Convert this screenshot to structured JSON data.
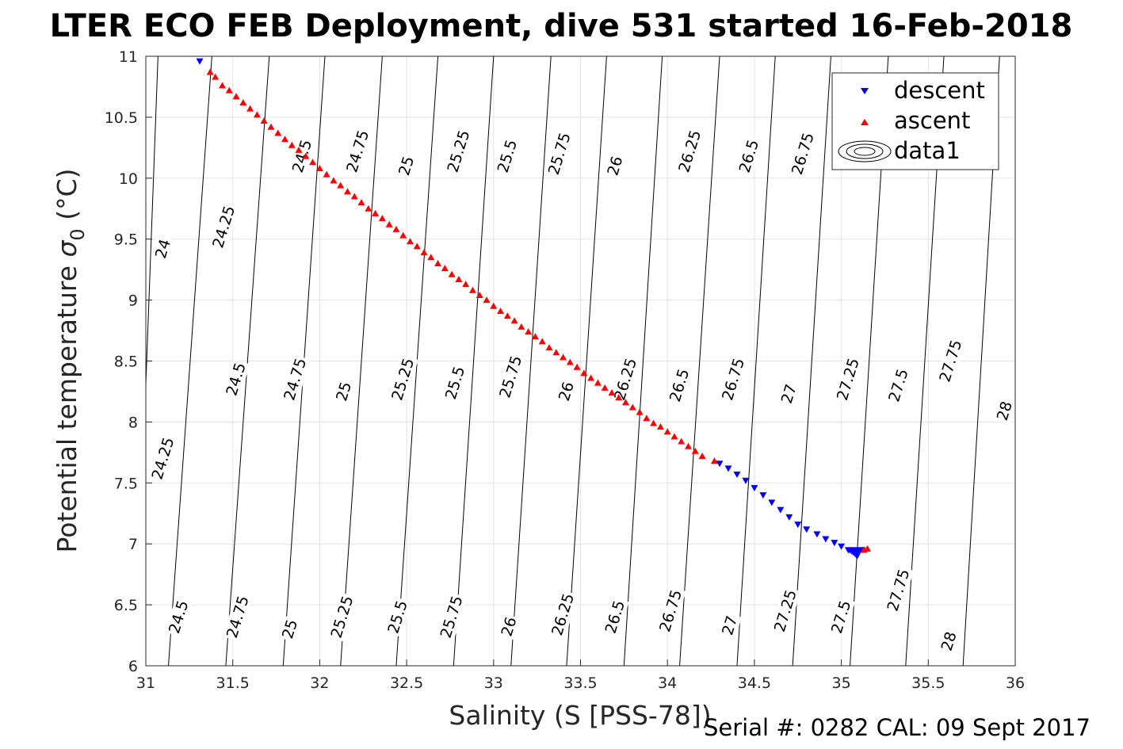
{
  "chart_data": {
    "type": "scatter",
    "title": "LTER ECO FEB Deployment, dive 531 started 16-Feb-2018",
    "xlabel": "Salinity (S [PSS-78])",
    "ylabel_main": "Potential temperature ",
    "ylabel_symbol": "σ",
    "ylabel_sub": "0",
    "ylabel_unit": " (°C)",
    "footer": "Serial #: 0282  CAL: 09 Sept 2017",
    "xlim": [
      31,
      36
    ],
    "ylim": [
      6,
      11
    ],
    "xticks": [
      "31",
      "31.5",
      "32",
      "32.5",
      "33",
      "33.5",
      "34",
      "34.5",
      "35",
      "35.5",
      "36"
    ],
    "yticks": [
      "6",
      "6.5",
      "7",
      "7.5",
      "8",
      "8.5",
      "9",
      "9.5",
      "10",
      "10.5",
      "11"
    ],
    "grid": true,
    "legend_position": "top-right",
    "legend": [
      "descent",
      "ascent",
      "data1"
    ],
    "series": [
      {
        "name": "descent",
        "color": "#0000ff",
        "marker": "triangle-down",
        "points": [
          [
            31.31,
            10.96
          ],
          [
            34.3,
            7.66
          ],
          [
            34.35,
            7.62
          ],
          [
            34.4,
            7.57
          ],
          [
            34.45,
            7.52
          ],
          [
            34.5,
            7.46
          ],
          [
            34.55,
            7.4
          ],
          [
            34.6,
            7.34
          ],
          [
            34.65,
            7.28
          ],
          [
            34.7,
            7.22
          ],
          [
            34.75,
            7.16
          ],
          [
            34.8,
            7.12
          ],
          [
            34.86,
            7.08
          ],
          [
            34.91,
            7.04
          ],
          [
            34.96,
            7.01
          ],
          [
            35.0,
            6.98
          ],
          [
            35.04,
            6.95
          ],
          [
            35.06,
            6.94
          ],
          [
            35.07,
            6.93
          ],
          [
            35.08,
            6.92
          ],
          [
            35.09,
            6.9
          ],
          [
            35.1,
            6.94
          ],
          [
            35.11,
            6.95
          ],
          [
            35.12,
            6.95
          ],
          [
            35.05,
            6.95
          ],
          [
            35.08,
            6.95
          ]
        ]
      },
      {
        "name": "ascent",
        "color": "#ff0000",
        "marker": "triangle-up",
        "points": [
          [
            31.37,
            10.87
          ],
          [
            31.4,
            10.83
          ],
          [
            31.44,
            10.76
          ],
          [
            31.48,
            10.72
          ],
          [
            31.52,
            10.67
          ],
          [
            31.56,
            10.62
          ],
          [
            31.6,
            10.57
          ],
          [
            31.64,
            10.52
          ],
          [
            31.68,
            10.47
          ],
          [
            31.72,
            10.42
          ],
          [
            31.76,
            10.37
          ],
          [
            31.8,
            10.32
          ],
          [
            31.84,
            10.27
          ],
          [
            31.88,
            10.23
          ],
          [
            31.92,
            10.18
          ],
          [
            31.96,
            10.13
          ],
          [
            32.0,
            10.08
          ],
          [
            32.04,
            10.03
          ],
          [
            32.08,
            9.98
          ],
          [
            32.12,
            9.94
          ],
          [
            32.16,
            9.89
          ],
          [
            32.2,
            9.85
          ],
          [
            32.24,
            9.8
          ],
          [
            32.28,
            9.75
          ],
          [
            32.32,
            9.71
          ],
          [
            32.36,
            9.67
          ],
          [
            32.4,
            9.62
          ],
          [
            32.44,
            9.58
          ],
          [
            32.48,
            9.53
          ],
          [
            32.52,
            9.48
          ],
          [
            32.56,
            9.44
          ],
          [
            32.6,
            9.39
          ],
          [
            32.64,
            9.35
          ],
          [
            32.68,
            9.3
          ],
          [
            32.72,
            9.26
          ],
          [
            32.76,
            9.21
          ],
          [
            32.8,
            9.17
          ],
          [
            32.84,
            9.13
          ],
          [
            32.88,
            9.08
          ],
          [
            32.92,
            9.04
          ],
          [
            32.96,
            9.0
          ],
          [
            33.0,
            8.95
          ],
          [
            33.04,
            8.91
          ],
          [
            33.08,
            8.87
          ],
          [
            33.12,
            8.83
          ],
          [
            33.16,
            8.78
          ],
          [
            33.2,
            8.74
          ],
          [
            33.24,
            8.7
          ],
          [
            33.28,
            8.66
          ],
          [
            33.32,
            8.61
          ],
          [
            33.36,
            8.57
          ],
          [
            33.4,
            8.53
          ],
          [
            33.44,
            8.49
          ],
          [
            33.48,
            8.45
          ],
          [
            33.52,
            8.4
          ],
          [
            33.56,
            8.36
          ],
          [
            33.6,
            8.32
          ],
          [
            33.64,
            8.28
          ],
          [
            33.68,
            8.24
          ],
          [
            33.72,
            8.2
          ],
          [
            33.76,
            8.16
          ],
          [
            33.8,
            8.12
          ],
          [
            33.84,
            8.08
          ],
          [
            33.88,
            8.03
          ],
          [
            33.92,
            7.99
          ],
          [
            33.96,
            7.96
          ],
          [
            34.0,
            7.92
          ],
          [
            34.04,
            7.88
          ],
          [
            34.08,
            7.84
          ],
          [
            34.12,
            7.8
          ],
          [
            34.16,
            7.76
          ],
          [
            34.2,
            7.72
          ],
          [
            34.27,
            7.68
          ],
          [
            35.15,
            6.96
          ],
          [
            35.13,
            6.95
          ]
        ]
      }
    ],
    "isopycnals": [
      {
        "value": "24",
        "p1": [
          31.07,
          11
        ],
        "p2": [
          30.94,
          6
        ]
      },
      {
        "value": "24.25",
        "p1": [
          31.38,
          11
        ],
        "p2": [
          31.13,
          6
        ]
      },
      {
        "value": "24.5",
        "p1": [
          31.71,
          11
        ],
        "p2": [
          31.46,
          6
        ]
      },
      {
        "value": "24.75",
        "p1": [
          32.03,
          11
        ],
        "p2": [
          31.79,
          6
        ]
      },
      {
        "value": "25",
        "p1": [
          32.36,
          11
        ],
        "p2": [
          32.12,
          6
        ]
      },
      {
        "value": "25.25",
        "p1": [
          32.68,
          11
        ],
        "p2": [
          32.44,
          6
        ]
      },
      {
        "value": "25.5",
        "p1": [
          33.0,
          11
        ],
        "p2": [
          32.77,
          6
        ]
      },
      {
        "value": "25.75",
        "p1": [
          33.33,
          11
        ],
        "p2": [
          33.1,
          6
        ]
      },
      {
        "value": "26",
        "p1": [
          33.65,
          11
        ],
        "p2": [
          33.42,
          6
        ]
      },
      {
        "value": "26.25",
        "p1": [
          33.97,
          11
        ],
        "p2": [
          33.75,
          6
        ]
      },
      {
        "value": "26.5",
        "p1": [
          34.3,
          11
        ],
        "p2": [
          34.07,
          6
        ]
      },
      {
        "value": "26.75",
        "p1": [
          34.62,
          11
        ],
        "p2": [
          34.4,
          6
        ]
      },
      {
        "value": "27",
        "p1": [
          34.94,
          11
        ],
        "p2": [
          34.72,
          6
        ]
      },
      {
        "value": "27.25",
        "p1": [
          35.27,
          11
        ],
        "p2": [
          35.05,
          6
        ]
      },
      {
        "value": "27.5",
        "p1": [
          35.59,
          11
        ],
        "p2": [
          35.37,
          6
        ]
      },
      {
        "value": "27.75",
        "p1": [
          35.91,
          11
        ],
        "p2": [
          35.7,
          6
        ]
      },
      {
        "value": "28",
        "p1": [
          36.23,
          11
        ],
        "p2": [
          36.02,
          6
        ]
      }
    ],
    "contour_labels": [
      {
        "text": "24",
        "x": 31.1,
        "y": 9.42
      },
      {
        "text": "24.25",
        "x": 31.45,
        "y": 9.6
      },
      {
        "text": "24.5",
        "x": 31.9,
        "y": 10.18
      },
      {
        "text": "24.75",
        "x": 32.22,
        "y": 10.22
      },
      {
        "text": "25",
        "x": 32.5,
        "y": 10.1
      },
      {
        "text": "25.25",
        "x": 32.8,
        "y": 10.22
      },
      {
        "text": "25.5",
        "x": 33.08,
        "y": 10.18
      },
      {
        "text": "25.75",
        "x": 33.38,
        "y": 10.2
      },
      {
        "text": "26",
        "x": 33.7,
        "y": 10.1
      },
      {
        "text": "26.25",
        "x": 34.13,
        "y": 10.22
      },
      {
        "text": "26.5",
        "x": 34.47,
        "y": 10.18
      },
      {
        "text": "26.75",
        "x": 34.78,
        "y": 10.2
      },
      {
        "text": "24.25",
        "x": 31.1,
        "y": 7.7
      },
      {
        "text": "24.5",
        "x": 31.52,
        "y": 8.35
      },
      {
        "text": "24.75",
        "x": 31.86,
        "y": 8.35
      },
      {
        "text": "25",
        "x": 32.14,
        "y": 8.25
      },
      {
        "text": "25.25",
        "x": 32.48,
        "y": 8.35
      },
      {
        "text": "25.5",
        "x": 32.78,
        "y": 8.32
      },
      {
        "text": "25.75",
        "x": 33.1,
        "y": 8.37
      },
      {
        "text": "26",
        "x": 33.42,
        "y": 8.25
      },
      {
        "text": "26.25",
        "x": 33.76,
        "y": 8.35
      },
      {
        "text": "26.5",
        "x": 34.07,
        "y": 8.3
      },
      {
        "text": "26.75",
        "x": 34.38,
        "y": 8.35
      },
      {
        "text": "27",
        "x": 34.7,
        "y": 8.23
      },
      {
        "text": "27.25",
        "x": 35.04,
        "y": 8.35
      },
      {
        "text": "27.5",
        "x": 35.33,
        "y": 8.3
      },
      {
        "text": "27.75",
        "x": 35.63,
        "y": 8.5
      },
      {
        "text": "28",
        "x": 35.94,
        "y": 8.09
      },
      {
        "text": "24.5",
        "x": 31.19,
        "y": 6.4
      },
      {
        "text": "24.75",
        "x": 31.53,
        "y": 6.4
      },
      {
        "text": "25",
        "x": 31.83,
        "y": 6.3
      },
      {
        "text": "25.25",
        "x": 32.13,
        "y": 6.4
      },
      {
        "text": "25.5",
        "x": 32.45,
        "y": 6.4
      },
      {
        "text": "25.75",
        "x": 32.76,
        "y": 6.4
      },
      {
        "text": "26",
        "x": 33.09,
        "y": 6.32
      },
      {
        "text": "26.25",
        "x": 33.4,
        "y": 6.42
      },
      {
        "text": "26.5",
        "x": 33.7,
        "y": 6.4
      },
      {
        "text": "26.75",
        "x": 34.02,
        "y": 6.45
      },
      {
        "text": "27",
        "x": 34.36,
        "y": 6.33
      },
      {
        "text": "27.25",
        "x": 34.68,
        "y": 6.45
      },
      {
        "text": "27.5",
        "x": 35.0,
        "y": 6.4
      },
      {
        "text": "27.75",
        "x": 35.33,
        "y": 6.62
      },
      {
        "text": "28",
        "x": 35.62,
        "y": 6.2
      }
    ]
  }
}
